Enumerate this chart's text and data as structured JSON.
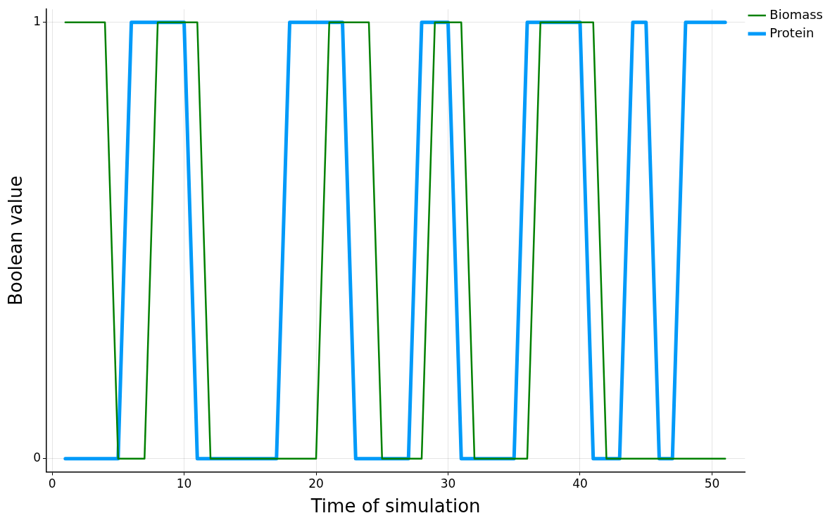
{
  "chart_data": {
    "type": "line",
    "xlabel": "Time of simulation",
    "ylabel": "Boolean value",
    "x": [
      1,
      2,
      3,
      4,
      5,
      6,
      7,
      8,
      9,
      10,
      11,
      12,
      13,
      14,
      15,
      16,
      17,
      18,
      19,
      20,
      21,
      22,
      23,
      24,
      25,
      26,
      27,
      28,
      29,
      30,
      31,
      32,
      33,
      34,
      35,
      36,
      37,
      38,
      39,
      40,
      41,
      42,
      43,
      44,
      45,
      46,
      47,
      48,
      49,
      50,
      51
    ],
    "series": [
      {
        "name": "Protein",
        "color": "#009af9",
        "values": [
          0,
          0,
          0,
          0,
          0,
          1,
          1,
          1,
          1,
          1,
          0,
          0,
          0,
          0,
          0,
          0,
          0,
          1,
          1,
          1,
          1,
          1,
          0,
          0,
          0,
          0,
          0,
          1,
          1,
          1,
          0,
          0,
          0,
          0,
          0,
          1,
          1,
          1,
          1,
          1,
          0,
          0,
          0,
          1,
          1,
          0,
          0,
          1,
          1,
          1,
          1
        ]
      },
      {
        "name": "Biomass",
        "color": "#008000",
        "values": [
          1,
          1,
          1,
          1,
          0,
          0,
          0,
          1,
          1,
          1,
          1,
          0,
          0,
          0,
          0,
          0,
          0,
          0,
          0,
          0,
          1,
          1,
          1,
          1,
          0,
          0,
          0,
          0,
          1,
          1,
          1,
          0,
          0,
          0,
          0,
          0,
          1,
          1,
          1,
          1,
          1,
          0,
          0,
          0,
          0,
          0,
          0,
          0,
          0,
          0,
          0
        ]
      }
    ],
    "xlim": [
      -0.43,
      52.5
    ],
    "xticks": [
      0,
      10,
      20,
      30,
      40,
      50
    ],
    "ylim": [
      -0.03,
      1.03
    ],
    "yticks": [
      0,
      1
    ],
    "grid": true,
    "legend": "top right",
    "marker": "none",
    "line_style": "solid"
  }
}
